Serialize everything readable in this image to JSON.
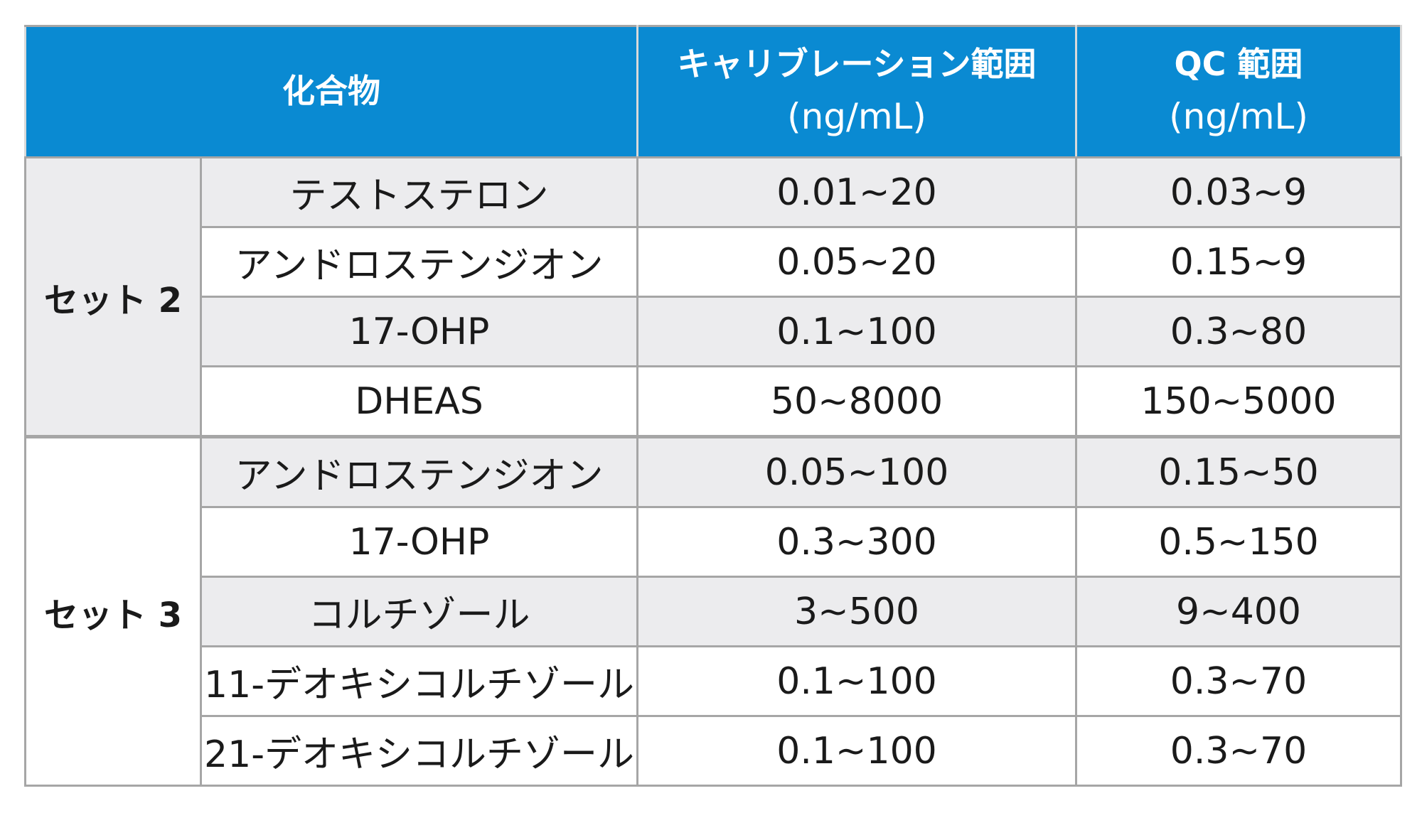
{
  "header": {
    "compound": "化合物",
    "calibration": {
      "label": "キャリブレーション範囲",
      "unit": "(ng/mL)"
    },
    "qc": {
      "label": "QC 範囲",
      "unit": "(ng/mL)"
    }
  },
  "groups": [
    {
      "set": "セット 2",
      "rows": [
        {
          "compound": "テストステロン",
          "calibration": "0.01~20",
          "qc": "0.03~9"
        },
        {
          "compound": "アンドロステンジオン",
          "calibration": "0.05~20",
          "qc": "0.15~9"
        },
        {
          "compound": "17-OHP",
          "calibration": "0.1~100",
          "qc": "0.3~80"
        },
        {
          "compound": "DHEAS",
          "calibration": "50~8000",
          "qc": "150~5000"
        }
      ]
    },
    {
      "set": "セット 3",
      "rows": [
        {
          "compound": "アンドロステンジオン",
          "calibration": "0.05~100",
          "qc": "0.15~50"
        },
        {
          "compound": "17-OHP",
          "calibration": "0.3~300",
          "qc": "0.5~150"
        },
        {
          "compound": "コルチゾール",
          "calibration": "3~500",
          "qc": "9~400"
        },
        {
          "compound": "11-デオキシコルチゾール",
          "calibration": "0.1~100",
          "qc": "0.3~70"
        },
        {
          "compound": "21-デオキシコルチゾール",
          "calibration": "0.1~100",
          "qc": "0.3~70"
        }
      ]
    }
  ]
}
